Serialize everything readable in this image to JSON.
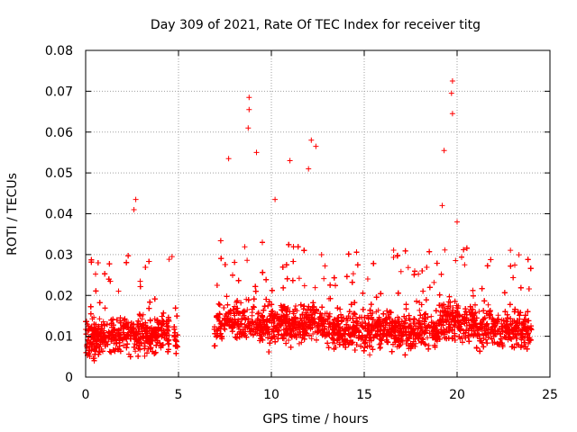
{
  "chart_data": {
    "type": "scatter",
    "title": "Day 309 of 2021, Rate Of TEC Index for receiver titg",
    "xlabel": "GPS time / hours",
    "ylabel": "ROTI / TECUs",
    "xlim": [
      0,
      25
    ],
    "ylim": [
      0,
      0.08
    ],
    "x_ticks": [
      0,
      5,
      10,
      15,
      20,
      25
    ],
    "y_ticks": [
      0,
      0.01,
      0.02,
      0.03,
      0.04,
      0.05,
      0.06,
      0.07,
      0.08
    ],
    "x_tick_labels": [
      "0",
      "5",
      "10",
      "15",
      "20",
      "25"
    ],
    "y_tick_labels": [
      "0",
      "0.01",
      "0.02",
      "0.03",
      "0.04",
      "0.05",
      "0.06",
      "0.07",
      "0.08"
    ],
    "grid": true,
    "marker": "+",
    "color": "#ff0000",
    "data_gaps_hours": [
      [
        4.5,
        4.75
      ],
      [
        4.95,
        6.9
      ]
    ],
    "notable_points": [
      {
        "x": 2.7,
        "y": 0.0435
      },
      {
        "x": 2.6,
        "y": 0.041
      },
      {
        "x": 4.65,
        "y": 0.0295
      },
      {
        "x": 7.7,
        "y": 0.0535
      },
      {
        "x": 8.8,
        "y": 0.0685
      },
      {
        "x": 8.8,
        "y": 0.0655
      },
      {
        "x": 8.75,
        "y": 0.061
      },
      {
        "x": 9.2,
        "y": 0.055
      },
      {
        "x": 10.2,
        "y": 0.0435
      },
      {
        "x": 11.0,
        "y": 0.053
      },
      {
        "x": 12.15,
        "y": 0.058
      },
      {
        "x": 12.4,
        "y": 0.0565
      },
      {
        "x": 12.0,
        "y": 0.051
      },
      {
        "x": 19.3,
        "y": 0.0555
      },
      {
        "x": 19.75,
        "y": 0.0725
      },
      {
        "x": 19.7,
        "y": 0.0695
      },
      {
        "x": 19.75,
        "y": 0.0645
      },
      {
        "x": 19.2,
        "y": 0.042
      },
      {
        "x": 20.0,
        "y": 0.038
      }
    ]
  }
}
